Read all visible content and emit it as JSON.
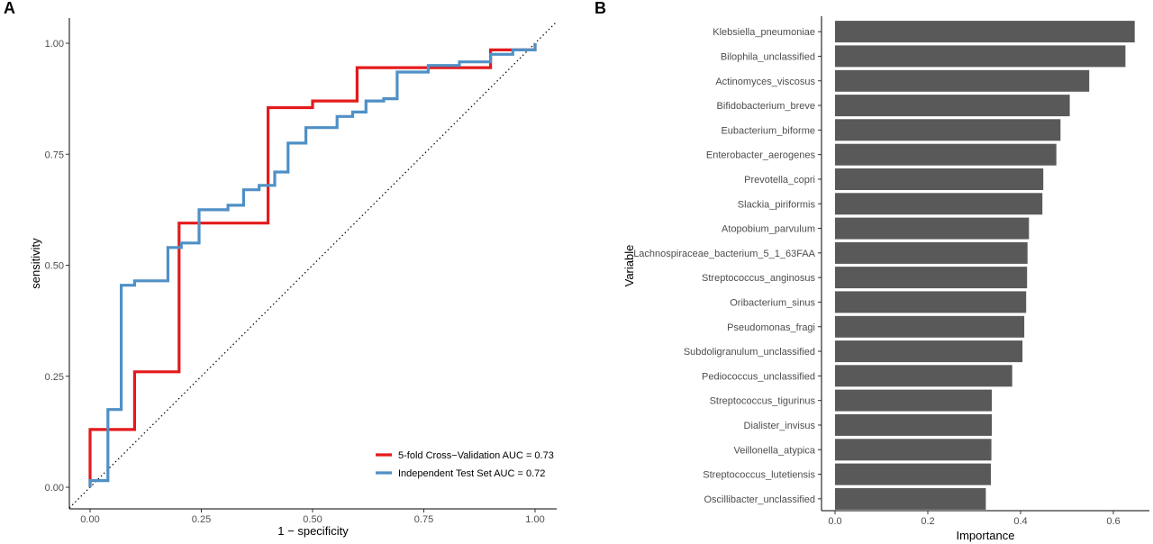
{
  "chart_data": [
    {
      "panel": "A",
      "type": "line",
      "xlabel": "1 − specificity",
      "ylabel": "sensitivity",
      "xlim": [
        0,
        1
      ],
      "ylim": [
        0,
        1
      ],
      "x_ticks": [
        "0.00",
        "0.25",
        "0.50",
        "0.75",
        "1.00"
      ],
      "y_ticks": [
        "0.00",
        "0.25",
        "0.50",
        "0.75",
        "1.00"
      ],
      "grid": false,
      "legend_position": "bottom-right",
      "reference_line": "diagonal dotted",
      "series": [
        {
          "name": "5-fold Cross−Validation AUC = 0.73",
          "color": "#e41a1c",
          "points": [
            [
              0.0,
              0.0
            ],
            [
              0.0,
              0.13
            ],
            [
              0.1,
              0.13
            ],
            [
              0.1,
              0.26
            ],
            [
              0.2,
              0.26
            ],
            [
              0.2,
              0.595
            ],
            [
              0.4,
              0.595
            ],
            [
              0.4,
              0.855
            ],
            [
              0.5,
              0.855
            ],
            [
              0.5,
              0.87
            ],
            [
              0.6,
              0.87
            ],
            [
              0.6,
              0.945
            ],
            [
              0.9,
              0.945
            ],
            [
              0.9,
              0.985
            ],
            [
              1.0,
              0.985
            ],
            [
              1.0,
              1.0
            ]
          ]
        },
        {
          "name": "Independent Test Set AUC = 0.72",
          "color": "#4f90c6",
          "points": [
            [
              0.0,
              0.0
            ],
            [
              0.0,
              0.015
            ],
            [
              0.04,
              0.015
            ],
            [
              0.04,
              0.175
            ],
            [
              0.07,
              0.175
            ],
            [
              0.07,
              0.455
            ],
            [
              0.1,
              0.455
            ],
            [
              0.1,
              0.465
            ],
            [
              0.175,
              0.465
            ],
            [
              0.175,
              0.54
            ],
            [
              0.205,
              0.54
            ],
            [
              0.205,
              0.55
            ],
            [
              0.245,
              0.55
            ],
            [
              0.245,
              0.625
            ],
            [
              0.31,
              0.625
            ],
            [
              0.31,
              0.635
            ],
            [
              0.345,
              0.635
            ],
            [
              0.345,
              0.67
            ],
            [
              0.38,
              0.67
            ],
            [
              0.38,
              0.68
            ],
            [
              0.415,
              0.68
            ],
            [
              0.415,
              0.71
            ],
            [
              0.445,
              0.71
            ],
            [
              0.445,
              0.775
            ],
            [
              0.485,
              0.775
            ],
            [
              0.485,
              0.81
            ],
            [
              0.555,
              0.81
            ],
            [
              0.555,
              0.835
            ],
            [
              0.59,
              0.835
            ],
            [
              0.59,
              0.845
            ],
            [
              0.62,
              0.845
            ],
            [
              0.62,
              0.87
            ],
            [
              0.66,
              0.87
            ],
            [
              0.66,
              0.875
            ],
            [
              0.69,
              0.875
            ],
            [
              0.69,
              0.935
            ],
            [
              0.76,
              0.935
            ],
            [
              0.76,
              0.95
            ],
            [
              0.83,
              0.95
            ],
            [
              0.83,
              0.958
            ],
            [
              0.9,
              0.958
            ],
            [
              0.9,
              0.975
            ],
            [
              0.95,
              0.975
            ],
            [
              0.95,
              0.985
            ],
            [
              1.0,
              0.985
            ],
            [
              1.0,
              1.0
            ]
          ]
        }
      ]
    },
    {
      "panel": "B",
      "type": "bar",
      "orientation": "horizontal",
      "xlabel": "Importance",
      "ylabel": "Variable",
      "xlim": [
        -0.03,
        0.66
      ],
      "x_ticks": [
        "0.0",
        "0.2",
        "0.4",
        "0.6"
      ],
      "bar_color": "#595959",
      "grid": false,
      "categories": [
        "Klebsiella_pneumoniae",
        "Bilophila_unclassified",
        "Actinomyces_viscosus",
        "Bifidobacterium_breve",
        "Eubacterium_biforme",
        "Enterobacter_aerogenes",
        "Prevotella_copri",
        "Slackia_piriformis",
        "Atopobium_parvulum",
        "Lachnospiraceae_bacterium_5_1_63FAA",
        "Streptococcus_anginosus",
        "Oribacterium_sinus",
        "Pseudomonas_fragi",
        "Subdoligranulum_unclassified",
        "Pediococcus_unclassified",
        "Streptococcus_tigurinus",
        "Dialister_invisus",
        "Veillonella_atypica",
        "Streptococcus_lutetiensis",
        "Oscillibacter_unclassified"
      ],
      "values": [
        0.646,
        0.626,
        0.548,
        0.506,
        0.486,
        0.477,
        0.449,
        0.447,
        0.418,
        0.415,
        0.414,
        0.412,
        0.408,
        0.404,
        0.382,
        0.338,
        0.338,
        0.337,
        0.336,
        0.325
      ]
    }
  ],
  "panel_labels": {
    "a": "A",
    "b": "B"
  }
}
